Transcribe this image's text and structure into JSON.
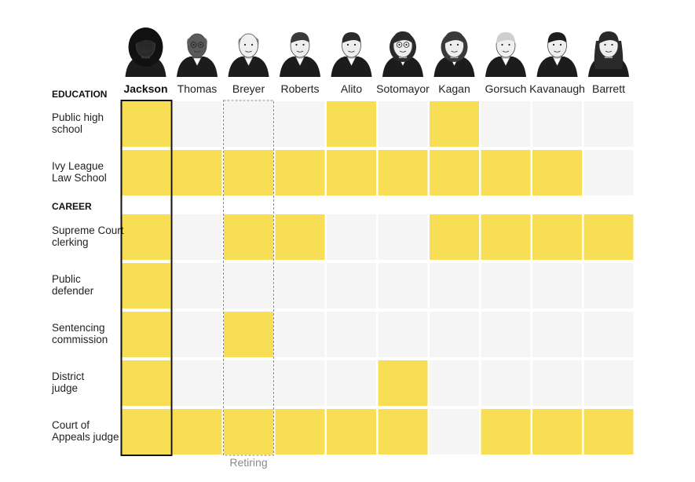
{
  "chart_data": {
    "type": "table",
    "justices": [
      {
        "name": "Jackson",
        "highlight": true,
        "skin": "#2b2b2b",
        "hair": "#111111",
        "hair_style": "locs",
        "glasses": true
      },
      {
        "name": "Thomas",
        "highlight": false,
        "skin": "#5a5a5a",
        "hair": "#e6e6e6",
        "hair_style": "bald",
        "glasses": true
      },
      {
        "name": "Breyer",
        "highlight": false,
        "skin": "#f0f0f0",
        "hair": "#f4f4f4",
        "hair_style": "bald",
        "glasses": false,
        "note": "Retiring"
      },
      {
        "name": "Roberts",
        "highlight": false,
        "skin": "#eeeeee",
        "hair": "#3a3a3a",
        "hair_style": "short",
        "glasses": false
      },
      {
        "name": "Alito",
        "highlight": false,
        "skin": "#eeeeee",
        "hair": "#2a2a2a",
        "hair_style": "short",
        "glasses": false
      },
      {
        "name": "Sotomayor",
        "highlight": false,
        "skin": "#eeeeee",
        "hair": "#2a2a2a",
        "hair_style": "bob",
        "glasses": true
      },
      {
        "name": "Kagan",
        "highlight": false,
        "skin": "#eeeeee",
        "hair": "#3a3a3a",
        "hair_style": "bob",
        "glasses": false
      },
      {
        "name": "Gorsuch",
        "highlight": false,
        "skin": "#f0f0f0",
        "hair": "#cfcfcf",
        "hair_style": "short",
        "glasses": false
      },
      {
        "name": "Kavanaugh",
        "highlight": false,
        "skin": "#eeeeee",
        "hair": "#1e1e1e",
        "hair_style": "short",
        "glasses": false
      },
      {
        "name": "Barrett",
        "highlight": false,
        "skin": "#eeeeee",
        "hair": "#2a2a2a",
        "hair_style": "long",
        "glasses": false
      }
    ],
    "sections": [
      {
        "title": "EDUCATION",
        "rows": [
          {
            "label": "Public high school",
            "values": [
              1,
              0,
              0,
              0,
              1,
              0,
              1,
              0,
              0,
              0
            ]
          },
          {
            "label": "Ivy League Law School",
            "values": [
              1,
              1,
              1,
              1,
              1,
              1,
              1,
              1,
              1,
              0
            ]
          }
        ]
      },
      {
        "title": "CAREER",
        "rows": [
          {
            "label": "Supreme Court clerking",
            "values": [
              1,
              0,
              1,
              1,
              0,
              0,
              1,
              1,
              1,
              1
            ]
          },
          {
            "label": "Public defender",
            "values": [
              1,
              0,
              0,
              0,
              0,
              0,
              0,
              0,
              0,
              0
            ]
          },
          {
            "label": "Sentencing commission",
            "values": [
              1,
              0,
              1,
              0,
              0,
              0,
              0,
              0,
              0,
              0
            ]
          },
          {
            "label": "District judge",
            "values": [
              1,
              0,
              0,
              0,
              0,
              1,
              0,
              0,
              0,
              0
            ]
          },
          {
            "label": "Court of Appeals judge",
            "values": [
              1,
              1,
              1,
              1,
              1,
              1,
              0,
              1,
              1,
              1
            ]
          }
        ]
      }
    ],
    "colors": {
      "yes": "#f7de54",
      "no": "#f5f5f5",
      "highlight_border": "#111111",
      "dashed_border": "#8a8a8a",
      "note": "#8a8a8a",
      "robe": "#1c1c1c"
    }
  }
}
